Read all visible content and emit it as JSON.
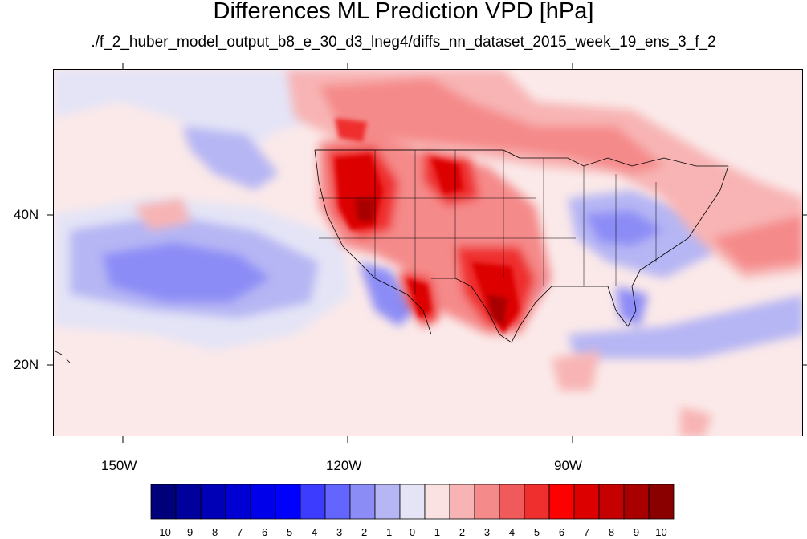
{
  "title": "Differences ML Prediction VPD [hPa]",
  "subtitle": "./f_2_huber_model_output_b8_e_30_d3_lneg4/diffs_nn_dataset_2015_week_19_ens_3_f_2",
  "axes": {
    "lon_labels": [
      "150W",
      "120W",
      "90W"
    ],
    "lat_labels": [
      "40N",
      "20N"
    ]
  },
  "colorbar": {
    "labels": [
      "-10",
      "-9",
      "-8",
      "-7",
      "-6",
      "-5",
      "-4",
      "-3",
      "-2",
      "-1",
      "0",
      "1",
      "2",
      "3",
      "4",
      "5",
      "6",
      "7",
      "8",
      "9",
      "10"
    ],
    "colors": [
      "#00007a",
      "#00009c",
      "#0000b6",
      "#0000d2",
      "#0000ea",
      "#0000ff",
      "#3c3cff",
      "#6464ff",
      "#8c8cf6",
      "#b6b6f4",
      "#e4e4f6",
      "#fbe2e2",
      "#f8b4b4",
      "#f58a8a",
      "#f05a5a",
      "#ef2e2e",
      "#ff0000",
      "#dc0000",
      "#c40000",
      "#a80000",
      "#8a0000"
    ]
  }
}
